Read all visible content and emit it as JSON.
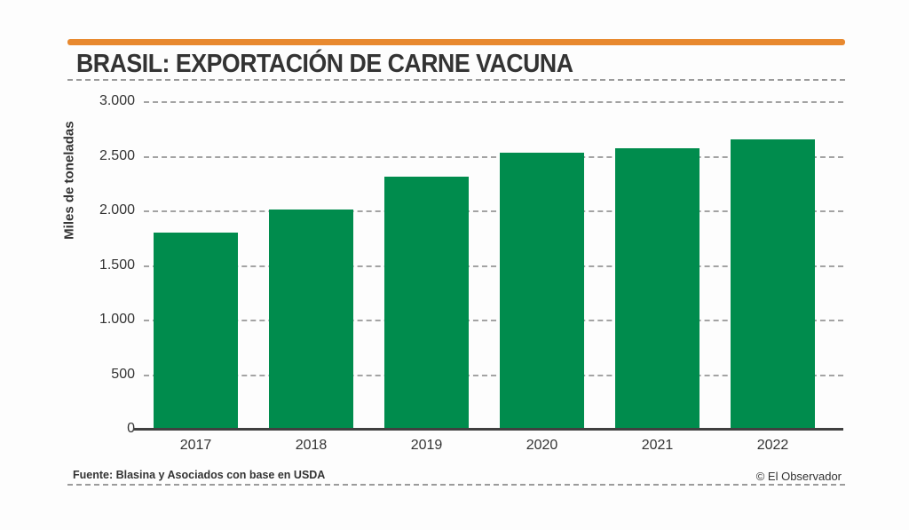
{
  "header": {
    "title": "BRASIL: EXPORTACIÓN DE CARNE VACUNA"
  },
  "footer": {
    "source": "Fuente: Blasina y Asociados con base en USDA",
    "credit": "© El Observador"
  },
  "colors": {
    "accent_orange": "#e8892f",
    "bar_green": "#008c4d",
    "text_dark": "#333333",
    "grid_gray": "#a3a3a3",
    "axis_dark": "#404040"
  },
  "chart_data": {
    "type": "bar",
    "title": "BRASIL: EXPORTACIÓN DE CARNE VACUNA",
    "categories": [
      "2017",
      "2018",
      "2019",
      "2020",
      "2021",
      "2022"
    ],
    "values": [
      1800,
      2010,
      2310,
      2530,
      2570,
      2650
    ],
    "xlabel": "",
    "ylabel": "Miles de toneladas",
    "ylim": [
      0,
      3000
    ],
    "yticks": [
      {
        "value": 0,
        "label": "0"
      },
      {
        "value": 500,
        "label": "500"
      },
      {
        "value": 1000,
        "label": "1.000"
      },
      {
        "value": 1500,
        "label": "1.500"
      },
      {
        "value": 2000,
        "label": "2.000"
      },
      {
        "value": 2500,
        "label": "2.500"
      },
      {
        "value": 3000,
        "label": "3.000"
      }
    ],
    "grid": "horizontal-dashed",
    "legend": "none",
    "bar_color": "#008c4d"
  }
}
